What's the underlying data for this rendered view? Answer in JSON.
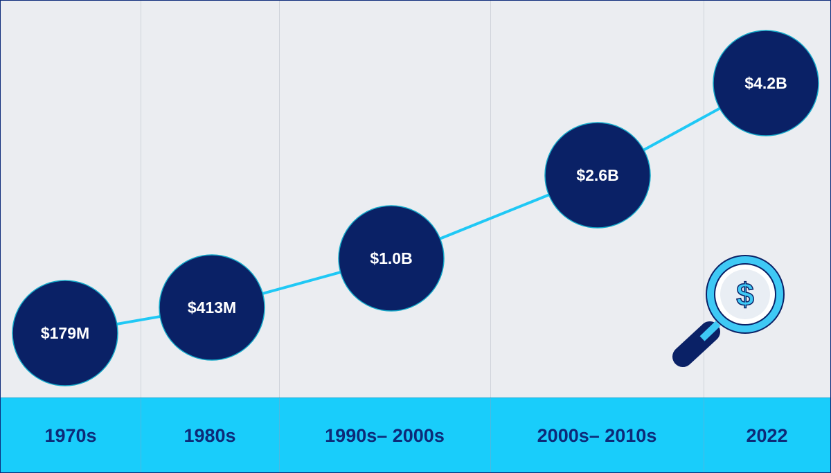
{
  "chart_data": {
    "type": "line",
    "categories": [
      "1970s",
      "1980s",
      "1990s– 2000s",
      "2000s– 2010s",
      "2022"
    ],
    "series": [
      {
        "values": [
          179,
          413,
          1000,
          2600,
          4200
        ]
      }
    ],
    "data_labels": [
      "$179M",
      "$413M",
      "$1.0B",
      "$2.6B",
      "$4.2B"
    ],
    "unit": "$ millions",
    "title": "",
    "xlabel": "",
    "ylabel": "",
    "grid": false,
    "legend": "none"
  },
  "decor": {
    "icon": "magnifier-dollar-icon",
    "symbol": "$"
  },
  "colors": {
    "background": "#ebedf1",
    "bubble_fill": "#0a2166",
    "bubble_stroke": "#14a9c9",
    "line": "#1fc8f5",
    "axis_band": "#19cdfb",
    "axis_text": "#0d2a78",
    "icon_light": "#3fc9f5",
    "icon_dark": "#0a2166"
  }
}
